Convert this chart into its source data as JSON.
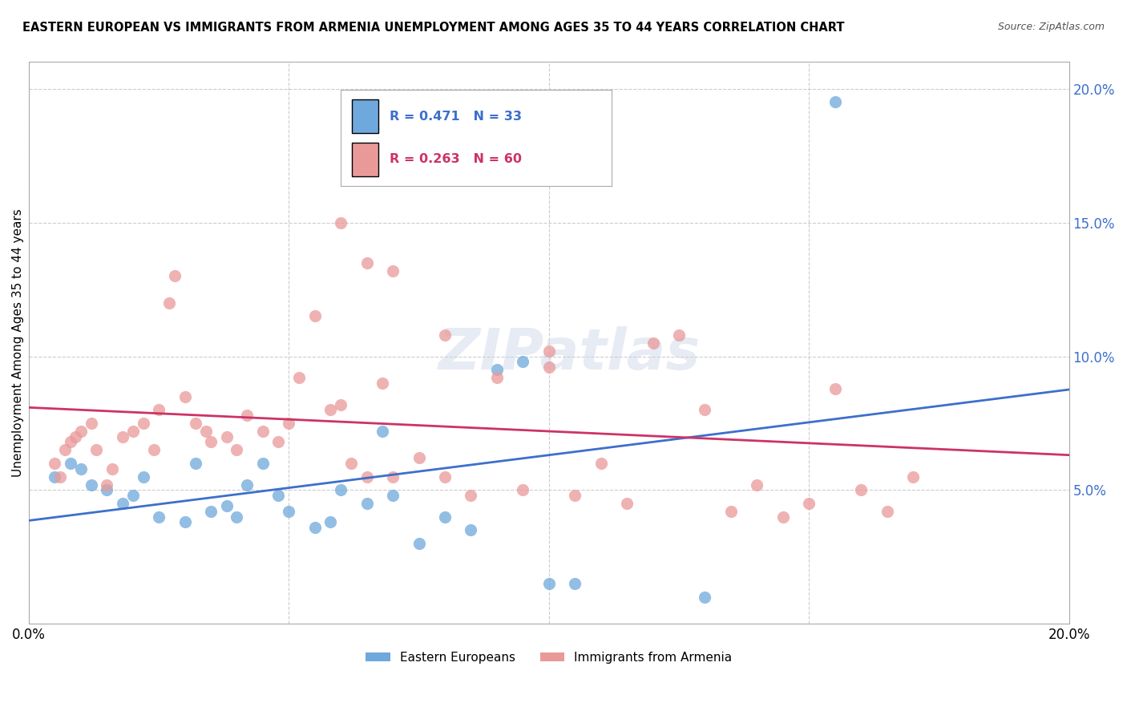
{
  "title": "EASTERN EUROPEAN VS IMMIGRANTS FROM ARMENIA UNEMPLOYMENT AMONG AGES 35 TO 44 YEARS CORRELATION CHART",
  "source": "Source: ZipAtlas.com",
  "ylabel": "Unemployment Among Ages 35 to 44 years",
  "xlim": [
    0,
    0.2
  ],
  "ylim": [
    0,
    0.21
  ],
  "yticks": [
    0.0,
    0.05,
    0.1,
    0.15,
    0.2
  ],
  "ytick_labels": [
    "",
    "5.0%",
    "10.0%",
    "15.0%",
    "20.0%"
  ],
  "xticks": [
    0.0,
    0.05,
    0.1,
    0.15,
    0.2
  ],
  "xtick_labels": [
    "0.0%",
    "",
    "",
    "",
    "20.0%"
  ],
  "blue_color": "#6fa8dc",
  "pink_color": "#ea9999",
  "blue_line_color": "#3d6fcc",
  "pink_line_color": "#cc3366",
  "legend_blue_R": "0.471",
  "legend_blue_N": "33",
  "legend_pink_R": "0.263",
  "legend_pink_N": "60",
  "legend_label_blue": "Eastern Europeans",
  "legend_label_pink": "Immigrants from Armenia",
  "watermark": "ZIPatlas",
  "blue_points_x": [
    0.005,
    0.008,
    0.01,
    0.012,
    0.015,
    0.018,
    0.02,
    0.022,
    0.025,
    0.03,
    0.032,
    0.035,
    0.038,
    0.04,
    0.042,
    0.045,
    0.048,
    0.05,
    0.055,
    0.058,
    0.06,
    0.065,
    0.068,
    0.07,
    0.075,
    0.08,
    0.085,
    0.09,
    0.095,
    0.1,
    0.105,
    0.13,
    0.155
  ],
  "blue_points_y": [
    0.055,
    0.06,
    0.058,
    0.052,
    0.05,
    0.045,
    0.048,
    0.055,
    0.04,
    0.038,
    0.06,
    0.042,
    0.044,
    0.04,
    0.052,
    0.06,
    0.048,
    0.042,
    0.036,
    0.038,
    0.05,
    0.045,
    0.072,
    0.048,
    0.03,
    0.04,
    0.035,
    0.095,
    0.098,
    0.015,
    0.015,
    0.01,
    0.195
  ],
  "pink_points_x": [
    0.005,
    0.006,
    0.007,
    0.008,
    0.009,
    0.01,
    0.012,
    0.013,
    0.015,
    0.016,
    0.018,
    0.02,
    0.022,
    0.024,
    0.025,
    0.027,
    0.028,
    0.03,
    0.032,
    0.034,
    0.035,
    0.038,
    0.04,
    0.042,
    0.045,
    0.048,
    0.05,
    0.052,
    0.055,
    0.058,
    0.06,
    0.062,
    0.065,
    0.068,
    0.07,
    0.075,
    0.08,
    0.085,
    0.09,
    0.095,
    0.1,
    0.105,
    0.11,
    0.115,
    0.12,
    0.125,
    0.13,
    0.135,
    0.14,
    0.145,
    0.15,
    0.155,
    0.16,
    0.165,
    0.17,
    0.06,
    0.065,
    0.07,
    0.08,
    0.1
  ],
  "pink_points_y": [
    0.06,
    0.055,
    0.065,
    0.068,
    0.07,
    0.072,
    0.075,
    0.065,
    0.052,
    0.058,
    0.07,
    0.072,
    0.075,
    0.065,
    0.08,
    0.12,
    0.13,
    0.085,
    0.075,
    0.072,
    0.068,
    0.07,
    0.065,
    0.078,
    0.072,
    0.068,
    0.075,
    0.092,
    0.115,
    0.08,
    0.082,
    0.06,
    0.055,
    0.09,
    0.055,
    0.062,
    0.055,
    0.048,
    0.092,
    0.05,
    0.096,
    0.048,
    0.06,
    0.045,
    0.105,
    0.108,
    0.08,
    0.042,
    0.052,
    0.04,
    0.045,
    0.088,
    0.05,
    0.042,
    0.055,
    0.15,
    0.135,
    0.132,
    0.108,
    0.102
  ]
}
